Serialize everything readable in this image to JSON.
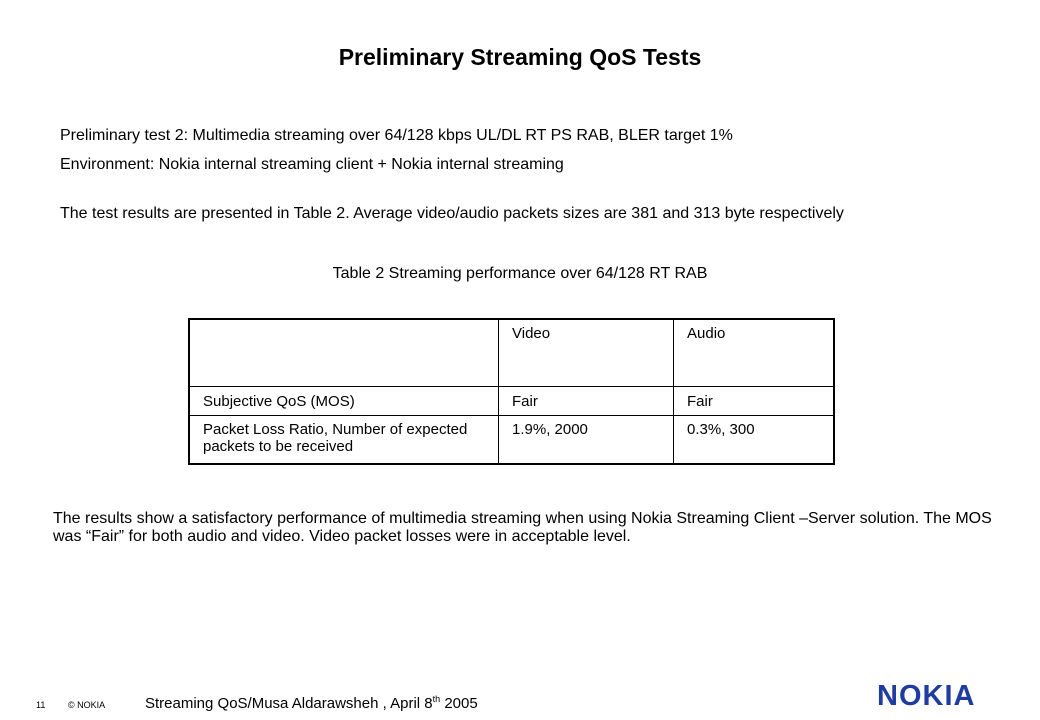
{
  "slide": {
    "title": "Preliminary Streaming QoS Tests",
    "para1": "Preliminary test 2: Multimedia streaming over 64/128 kbps UL/DL RT PS RAB, BLER target 1%",
    "para2": "Environment: Nokia internal streaming client + Nokia internal streaming",
    "para3": "The test results are presented in Table 2. Average video/audio packets sizes are 381 and 313 byte respectively",
    "table_caption": "Table 2 Streaming performance over 64/128 RT RAB",
    "summary": "The results show a satisfactory performance of multimedia streaming when using Nokia Streaming Client –Server solution. The MOS was “Fair” for both audio and video. Video packet losses were in acceptable level."
  },
  "table": {
    "headers": [
      "",
      "Video",
      "Audio"
    ],
    "rows": [
      [
        "Subjective QoS (MOS)",
        "Fair",
        "Fair"
      ],
      [
        "Packet Loss Ratio, Number of expected packets to be received",
        "1.9%, 2000",
        "0.3%, 300"
      ]
    ]
  },
  "footer": {
    "page_number": "11",
    "copyright": "© NOKIA",
    "text_main": "Streaming QoS/Musa Aldarawsheh ,  April 8",
    "text_sup": "th",
    "text_year": " 2005",
    "logo_text": "NOKIA",
    "logo_color": "#1f3ca0"
  }
}
